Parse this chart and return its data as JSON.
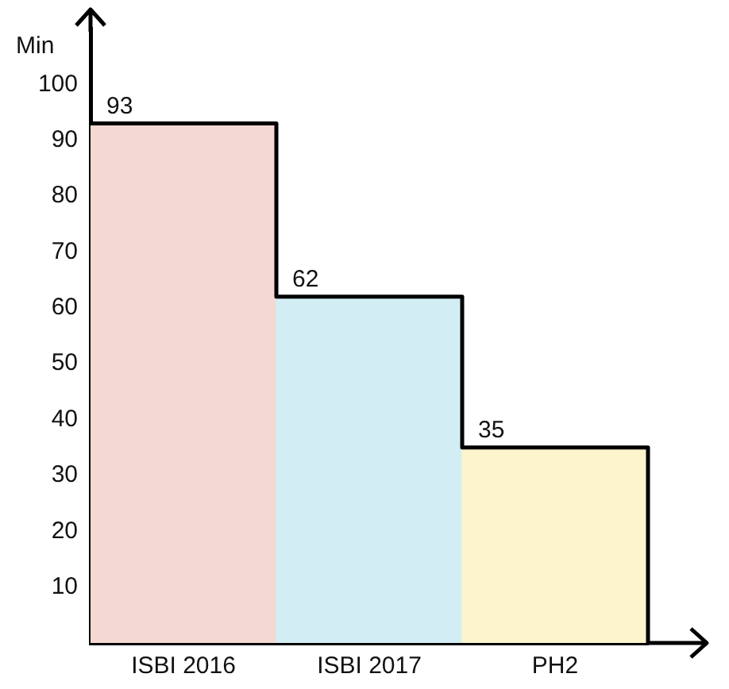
{
  "chart_data": {
    "type": "bar",
    "ylabel": "Min",
    "categories": [
      "ISBI 2016",
      "ISBI 2017",
      "PH2"
    ],
    "values": [
      93,
      62,
      35
    ],
    "colors": [
      "#f4d9d2",
      "#d2eef4",
      "#fbf4cc"
    ],
    "ylim": [
      0,
      110
    ],
    "yticks": [
      10,
      20,
      30,
      40,
      50,
      60,
      70,
      80,
      90,
      100
    ],
    "grid": false,
    "legend": false,
    "data_labels": true
  }
}
